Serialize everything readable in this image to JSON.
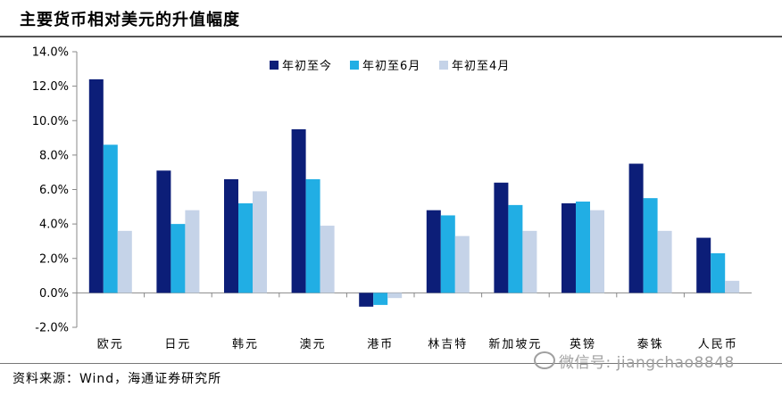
{
  "title": "主要货币相对美元的升值幅度",
  "source": "资料来源：Wind，海通证券研究所",
  "watermark": "微信号: jiangchao8848",
  "chart_data": {
    "type": "bar",
    "categories": [
      "欧元",
      "日元",
      "韩元",
      "澳元",
      "港币",
      "林吉特",
      "新加坡元",
      "英镑",
      "泰铢",
      "人民币"
    ],
    "series": [
      {
        "name": "年初至今",
        "color": "#0c1e78",
        "values": [
          12.4,
          7.1,
          6.6,
          9.5,
          -0.8,
          4.8,
          6.4,
          5.2,
          7.5,
          3.2
        ]
      },
      {
        "name": "年初至6月",
        "color": "#21aee4",
        "values": [
          8.6,
          4.0,
          5.2,
          6.6,
          -0.7,
          4.5,
          5.1,
          5.3,
          5.5,
          2.3
        ]
      },
      {
        "name": "年初至4月",
        "color": "#c5d3e8",
        "values": [
          3.6,
          4.8,
          5.9,
          3.9,
          -0.3,
          3.3,
          3.6,
          4.8,
          3.6,
          0.7
        ]
      }
    ],
    "ylim": [
      -2.0,
      14.0
    ],
    "yticks": [
      "14.0%",
      "12.0%",
      "10.0%",
      "8.0%",
      "6.0%",
      "4.0%",
      "2.0%",
      "0.0%",
      "-2.0%"
    ],
    "ytick_values": [
      14,
      12,
      10,
      8,
      6,
      4,
      2,
      0,
      -2
    ],
    "legend_position": "top-center",
    "grid": false
  }
}
